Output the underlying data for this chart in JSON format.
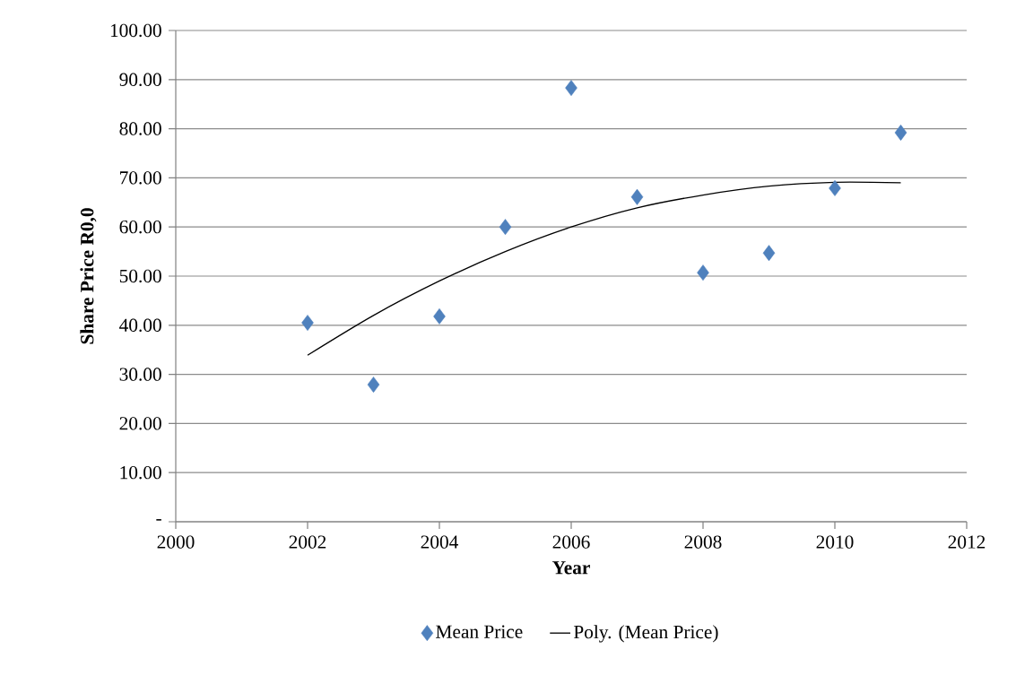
{
  "chart_data": {
    "type": "scatter",
    "xlabel": "Year",
    "ylabel": "Share Price R0,0",
    "xlim": [
      2000,
      2012
    ],
    "xticks": [
      2000,
      2002,
      2004,
      2006,
      2008,
      2010,
      2012
    ],
    "ylim": [
      0,
      100
    ],
    "yticks": [
      {
        "value": 0,
        "label": "-"
      },
      {
        "value": 10,
        "label": "10.00"
      },
      {
        "value": 20,
        "label": "20.00"
      },
      {
        "value": 30,
        "label": "30.00"
      },
      {
        "value": 40,
        "label": "40.00"
      },
      {
        "value": 50,
        "label": "50.00"
      },
      {
        "value": 60,
        "label": "60.00"
      },
      {
        "value": 70,
        "label": "70.00"
      },
      {
        "value": 80,
        "label": "80.00"
      },
      {
        "value": 90,
        "label": "90.00"
      },
      {
        "value": 100,
        "label": "100.00"
      }
    ],
    "grid": "y",
    "legend": "bottom",
    "series": [
      {
        "name": "Mean Price",
        "marker": "diamond",
        "color": "#4f81bd",
        "x": [
          2002,
          2003,
          2004,
          2005,
          2006,
          2007,
          2008,
          2009,
          2010,
          2011
        ],
        "values": [
          40.5,
          27.9,
          41.8,
          60.0,
          88.3,
          66.1,
          50.7,
          54.7,
          67.9,
          79.2
        ]
      },
      {
        "name": "Poly. (Mean Price)",
        "type": "line",
        "marker": "none",
        "line_style": "solid",
        "color": "#000000",
        "x": [
          2002,
          2003,
          2004,
          2005,
          2006,
          2007,
          2008,
          2009,
          2010,
          2011
        ],
        "values": [
          33.9,
          42.0,
          49.0,
          55.0,
          60.0,
          63.9,
          66.5,
          68.3,
          69.1,
          69.0
        ]
      }
    ]
  }
}
